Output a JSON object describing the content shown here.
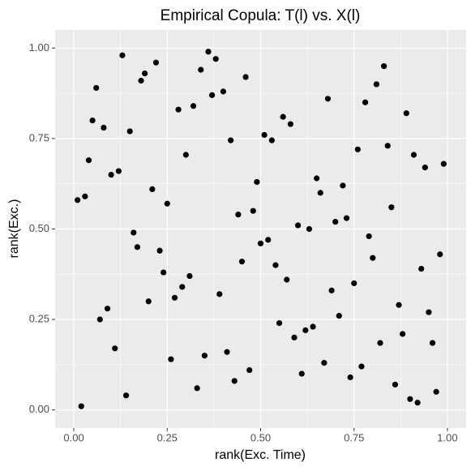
{
  "chart_data": {
    "type": "scatter",
    "title": "Empirical Copula: T(l) vs. X(l)",
    "x_label": "rank(Exc. Time)",
    "y_label": "rank(Exc.)",
    "color": "#000000",
    "grid": true,
    "xlim": [
      -0.05,
      1.05
    ],
    "ylim": [
      -0.05,
      1.05
    ],
    "xticks": [
      {
        "value": 0,
        "label": "0.00"
      },
      {
        "value": 0.25,
        "label": "0.25"
      },
      {
        "value": 0.5,
        "label": "0.50"
      },
      {
        "value": 0.75,
        "label": "0.75"
      },
      {
        "value": 1,
        "label": "1.00"
      }
    ],
    "yticks": [
      {
        "value": 0,
        "label": "0.00"
      },
      {
        "value": 0.25,
        "label": "0.25"
      },
      {
        "value": 0.5,
        "label": "0.50"
      },
      {
        "value": 0.75,
        "label": "0.75"
      },
      {
        "value": 1,
        "label": "1.00"
      }
    ],
    "x": [
      0.02,
      0.01,
      0.03,
      0.04,
      0.05,
      0.06,
      0.07,
      0.08,
      0.09,
      0.1,
      0.11,
      0.12,
      0.13,
      0.14,
      0.15,
      0.16,
      0.17,
      0.18,
      0.19,
      0.2,
      0.21,
      0.22,
      0.23,
      0.24,
      0.25,
      0.26,
      0.27,
      0.28,
      0.29,
      0.3,
      0.31,
      0.32,
      0.33,
      0.34,
      0.35,
      0.36,
      0.37,
      0.38,
      0.39,
      0.4,
      0.41,
      0.42,
      0.43,
      0.44,
      0.45,
      0.46,
      0.47,
      0.48,
      0.49,
      0.5,
      0.51,
      0.52,
      0.53,
      0.54,
      0.55,
      0.56,
      0.57,
      0.58,
      0.59,
      0.6,
      0.61,
      0.62,
      0.63,
      0.64,
      0.65,
      0.66,
      0.67,
      0.68,
      0.69,
      0.7,
      0.71,
      0.72,
      0.73,
      0.74,
      0.75,
      0.76,
      0.77,
      0.78,
      0.79,
      0.8,
      0.81,
      0.82,
      0.83,
      0.84,
      0.85,
      0.86,
      0.87,
      0.88,
      0.89,
      0.9,
      0.91,
      0.92,
      0.93,
      0.94,
      0.95,
      0.96,
      0.97,
      0.98,
      0.99
    ],
    "y": [
      0.01,
      0.58,
      0.59,
      0.69,
      0.8,
      0.89,
      0.25,
      0.78,
      0.28,
      0.65,
      0.17,
      0.66,
      0.98,
      0.04,
      0.77,
      0.49,
      0.45,
      0.91,
      0.93,
      0.3,
      0.61,
      0.96,
      0.44,
      0.38,
      0.57,
      0.14,
      0.31,
      0.83,
      0.34,
      0.705,
      0.37,
      0.84,
      0.06,
      0.94,
      0.15,
      0.99,
      0.87,
      0.97,
      0.32,
      0.88,
      0.16,
      0.745,
      0.08,
      0.54,
      0.41,
      0.92,
      0.11,
      0.55,
      0.63,
      0.46,
      0.76,
      0.47,
      0.745,
      0.4,
      0.24,
      0.81,
      0.36,
      0.79,
      0.2,
      0.51,
      0.1,
      0.22,
      0.5,
      0.23,
      0.64,
      0.6,
      0.13,
      0.86,
      0.33,
      0.52,
      0.26,
      0.62,
      0.53,
      0.09,
      0.35,
      0.72,
      0.12,
      0.85,
      0.48,
      0.42,
      0.9,
      0.185,
      0.95,
      0.73,
      0.56,
      0.07,
      0.29,
      0.21,
      0.82,
      0.03,
      0.705,
      0.02,
      0.39,
      0.67,
      0.27,
      0.185,
      0.05,
      0.43,
      0.68
    ]
  }
}
